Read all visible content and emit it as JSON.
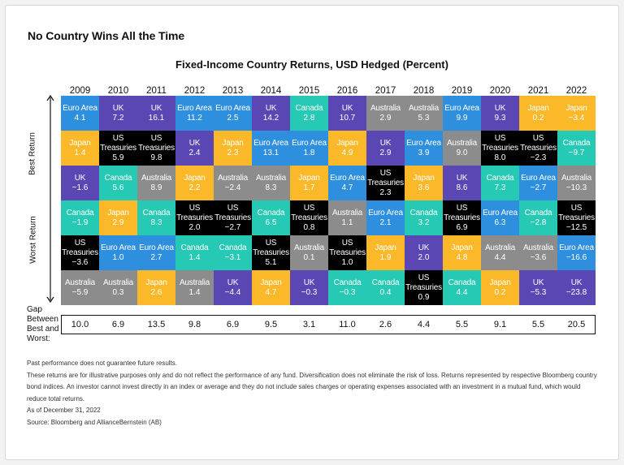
{
  "headline": "No Country Wins All the Time",
  "chart_data": {
    "type": "table",
    "title": "Fixed-Income Country Returns, USD Hedged (Percent)",
    "ylabel_top": "Best Return",
    "ylabel_bottom": "Worst Return",
    "years": [
      "2009",
      "2010",
      "2011",
      "2012",
      "2013",
      "2014",
      "2015",
      "2016",
      "2017",
      "2018",
      "2019",
      "2020",
      "2021",
      "2022"
    ],
    "rankings": [
      [
        {
          "name": "Euro Area",
          "value": "4.1"
        },
        {
          "name": "Japan",
          "value": "1.4"
        },
        {
          "name": "UK",
          "value": "−1.6"
        },
        {
          "name": "Canada",
          "value": "−1.9"
        },
        {
          "name": "US Treasuries",
          "value": "−3.6"
        },
        {
          "name": "Australia",
          "value": "−5.9"
        }
      ],
      [
        {
          "name": "UK",
          "value": "7.2"
        },
        {
          "name": "US Treasuries",
          "value": "5.9"
        },
        {
          "name": "Canada",
          "value": "5.6"
        },
        {
          "name": "Japan",
          "value": "2.9"
        },
        {
          "name": "Euro Area",
          "value": "1.0"
        },
        {
          "name": "Australia",
          "value": "0.3"
        }
      ],
      [
        {
          "name": "UK",
          "value": "16.1"
        },
        {
          "name": "US Treasuries",
          "value": "9.8"
        },
        {
          "name": "Australia",
          "value": "8.9"
        },
        {
          "name": "Canada",
          "value": "8.3"
        },
        {
          "name": "Euro Area",
          "value": "2.7"
        },
        {
          "name": "Japan",
          "value": "2.6"
        }
      ],
      [
        {
          "name": "Euro Area",
          "value": "11.2"
        },
        {
          "name": "UK",
          "value": "2.4"
        },
        {
          "name": "Japan",
          "value": "2.2"
        },
        {
          "name": "US Treasuries",
          "value": "2.0"
        },
        {
          "name": "Canada",
          "value": "1.4"
        },
        {
          "name": "Australia",
          "value": "1.4"
        }
      ],
      [
        {
          "name": "Euro Area",
          "value": "2.5"
        },
        {
          "name": "Japan",
          "value": "2.3"
        },
        {
          "name": "Australia",
          "value": "−2.4"
        },
        {
          "name": "US Treasuries",
          "value": "−2.7"
        },
        {
          "name": "Canada",
          "value": "−3.1"
        },
        {
          "name": "UK",
          "value": "−4.4"
        }
      ],
      [
        {
          "name": "UK",
          "value": "14.2"
        },
        {
          "name": "Euro Area",
          "value": "13.1"
        },
        {
          "name": "Australia",
          "value": "8.3"
        },
        {
          "name": "Canada",
          "value": "6.5"
        },
        {
          "name": "US Treasuries",
          "value": "5.1"
        },
        {
          "name": "Japan",
          "value": "4.7"
        }
      ],
      [
        {
          "name": "Canada",
          "value": "2.8"
        },
        {
          "name": "Euro Area",
          "value": "1.8"
        },
        {
          "name": "Japan",
          "value": "1.7"
        },
        {
          "name": "US Treasuries",
          "value": "0.8"
        },
        {
          "name": "Australia",
          "value": "0.1"
        },
        {
          "name": "UK",
          "value": "−0.3"
        }
      ],
      [
        {
          "name": "UK",
          "value": "10.7"
        },
        {
          "name": "Japan",
          "value": "4.9"
        },
        {
          "name": "Euro Area",
          "value": "4.7"
        },
        {
          "name": "Australia",
          "value": "1.1"
        },
        {
          "name": "US Treasuries",
          "value": "1.0"
        },
        {
          "name": "Canada",
          "value": "−0.3"
        }
      ],
      [
        {
          "name": "Australia",
          "value": "2.9"
        },
        {
          "name": "UK",
          "value": "2.9"
        },
        {
          "name": "US Treasuries",
          "value": "2.3"
        },
        {
          "name": "Euro Area",
          "value": "2.1"
        },
        {
          "name": "Japan",
          "value": "1.9"
        },
        {
          "name": "Canada",
          "value": "0.4"
        }
      ],
      [
        {
          "name": "Australia",
          "value": "5.3"
        },
        {
          "name": "Euro Area",
          "value": "3.9"
        },
        {
          "name": "Japan",
          "value": "3.6"
        },
        {
          "name": "Canada",
          "value": "3.2"
        },
        {
          "name": "UK",
          "value": "2.0"
        },
        {
          "name": "US Treasuries",
          "value": "0.9"
        }
      ],
      [
        {
          "name": "Euro Area",
          "value": "9.9"
        },
        {
          "name": "Australia",
          "value": "9.0"
        },
        {
          "name": "UK",
          "value": "8.6"
        },
        {
          "name": "US Treasuries",
          "value": "6.9"
        },
        {
          "name": "Japan",
          "value": "4.8"
        },
        {
          "name": "Canada",
          "value": "4.4"
        }
      ],
      [
        {
          "name": "UK",
          "value": "9.3"
        },
        {
          "name": "US Treasuries",
          "value": "8.0"
        },
        {
          "name": "Canada",
          "value": "7.3"
        },
        {
          "name": "Euro Area",
          "value": "6.3"
        },
        {
          "name": "Australia",
          "value": "4.4"
        },
        {
          "name": "Japan",
          "value": "0.2"
        }
      ],
      [
        {
          "name": "Japan",
          "value": "0.2"
        },
        {
          "name": "US Treasuries",
          "value": "−2.3"
        },
        {
          "name": "Euro Area",
          "value": "−2.7"
        },
        {
          "name": "Canada",
          "value": "−2.8"
        },
        {
          "name": "Australia",
          "value": "−3.6"
        },
        {
          "name": "UK",
          "value": "−5.3"
        }
      ],
      [
        {
          "name": "Japan",
          "value": "−3.4"
        },
        {
          "name": "Canada",
          "value": "−9.7"
        },
        {
          "name": "Australia",
          "value": "−10.3"
        },
        {
          "name": "US Treasuries",
          "value": "−12.5"
        },
        {
          "name": "Euro Area",
          "value": "−16.6"
        },
        {
          "name": "UK",
          "value": "−23.8"
        }
      ]
    ],
    "gap_label": "Gap Between Best and Worst:",
    "gap_values": [
      "10.0",
      "6.9",
      "13.5",
      "9.8",
      "6.9",
      "9.5",
      "3.1",
      "11.0",
      "2.6",
      "4.4",
      "5.5",
      "9.1",
      "5.5",
      "20.5"
    ],
    "colors": {
      "Euro Area": {
        "bg": "#2e8fde",
        "fg": "#ffffff"
      },
      "UK": {
        "bg": "#5b47b3",
        "fg": "#ffffff"
      },
      "Canada": {
        "bg": "#26c9b3",
        "fg": "#ffffff"
      },
      "Australia": {
        "bg": "#8c8c8c",
        "fg": "#ffffff"
      },
      "Japan": {
        "bg": "#fbb829",
        "fg": "#ffffff"
      },
      "US Treasuries": {
        "bg": "#000000",
        "fg": "#ffffff"
      }
    }
  },
  "footnotes": [
    "Past performance does not guarantee future results.",
    "These returns are for illustrative purposes only and do not reflect the performance of any fund. Diversification does not eliminate the risk of loss. Returns represented by respective Bloomberg country bond indices. An investor cannot invest directly in an index or average and they do not include sales charges or operating expenses associated with an investment in a mutual fund, which would reduce total returns.",
    "As of December 31, 2022",
    "Source: Bloomberg and AllianceBernstein (AB)"
  ]
}
